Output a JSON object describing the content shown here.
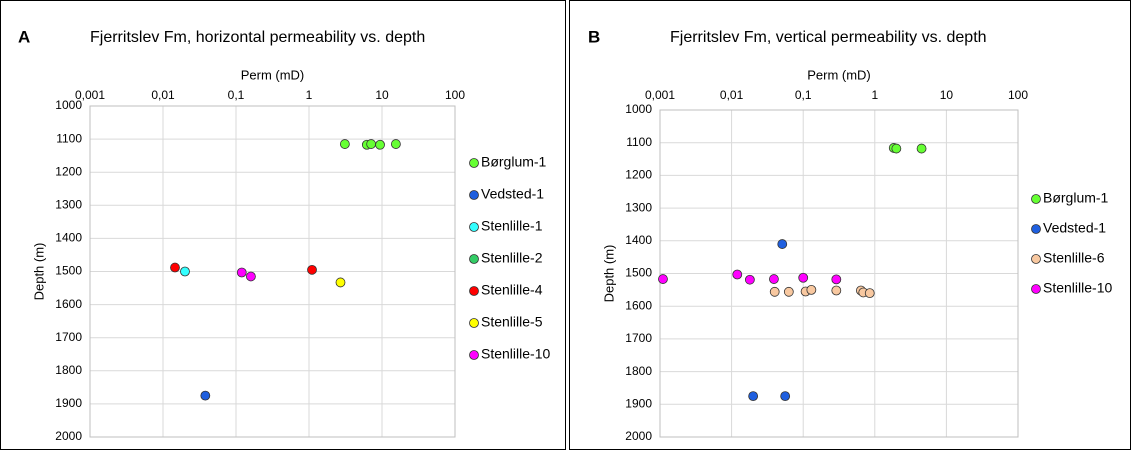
{
  "chart_data": [
    {
      "type": "scatter",
      "panel_label": "A",
      "title": "Fjerritslev Fm,  horizontal permeability vs. depth",
      "x_label": "Perm (mD)",
      "y_label": "Depth (m)",
      "x_log": true,
      "y_inverted": true,
      "grid": true,
      "legend": "right",
      "xlim": [
        0.001,
        100
      ],
      "xticks": [
        {
          "value": 0.001,
          "label": "0,001"
        },
        {
          "value": 0.01,
          "label": "0,01"
        },
        {
          "value": 0.1,
          "label": "0,1"
        },
        1,
        10,
        100
      ],
      "ylim": [
        1000,
        2000
      ],
      "yticks": [
        1000,
        1100,
        1200,
        1300,
        1400,
        1500,
        1600,
        1700,
        1800,
        1900,
        2000
      ],
      "series": [
        {
          "name": "Børglum-1",
          "color": "#66ff33",
          "x": [
            3.1,
            6.2,
            7.1,
            9.4,
            15.5
          ],
          "y": [
            1115,
            1117,
            1115,
            1117,
            1115
          ]
        },
        {
          "name": "Vedsted-1",
          "color": "#1f5fdf",
          "x": [
            0.038
          ],
          "y": [
            1875
          ]
        },
        {
          "name": "Stenlille-1",
          "color": "#33ffff",
          "x": [
            0.02
          ],
          "y": [
            1500
          ]
        },
        {
          "name": "Stenlille-2",
          "color": "#33cc66",
          "x": [],
          "y": []
        },
        {
          "name": "Stenlille-4",
          "color": "#ff0000",
          "x": [
            0.0146,
            1.1
          ],
          "y": [
            1488,
            1495
          ]
        },
        {
          "name": "Stenlille-5",
          "color": "#ffff00",
          "x": [
            2.7
          ],
          "y": [
            1533
          ]
        },
        {
          "name": "Stenlille-10",
          "color": "#ff00ff",
          "x": [
            0.12,
            0.16
          ],
          "y": [
            1503,
            1515
          ]
        }
      ]
    },
    {
      "type": "scatter",
      "panel_label": "B",
      "title": "Fjerritslev Fm, vertical permeability vs. depth",
      "x_label": "Perm (mD)",
      "y_label": "Depth (m)",
      "x_log": true,
      "y_inverted": true,
      "grid": true,
      "legend": "right",
      "xlim": [
        0.001,
        100
      ],
      "xticks": [
        {
          "value": 0.001,
          "label": "0,001"
        },
        {
          "value": 0.01,
          "label": "0,01"
        },
        {
          "value": 0.1,
          "label": "0,1"
        },
        1,
        10,
        100
      ],
      "ylim": [
        1000,
        2000
      ],
      "yticks": [
        1000,
        1100,
        1200,
        1300,
        1400,
        1500,
        1600,
        1700,
        1800,
        1900,
        2000
      ],
      "series": [
        {
          "name": "Børglum-1",
          "color": "#66ff33",
          "x": [
            1.84,
            2.0,
            4.5
          ],
          "y": [
            1116,
            1118,
            1118
          ]
        },
        {
          "name": "Vedsted-1",
          "color": "#1f5fdf",
          "x": [
            0.051,
            0.02,
            0.056
          ],
          "y": [
            1410,
            1875,
            1875
          ]
        },
        {
          "name": "Stenlille-6",
          "color": "#f8c8a0",
          "x": [
            0.04,
            0.063,
            0.108,
            0.13,
            0.29,
            0.64,
            0.69,
            0.85
          ],
          "y": [
            1556,
            1556,
            1555,
            1550,
            1552,
            1552,
            1558,
            1560
          ]
        },
        {
          "name": "Stenlille-10",
          "color": "#ff00ff",
          "x": [
            0.0011,
            0.012,
            0.018,
            0.039,
            0.1,
            0.29
          ],
          "y": [
            1517,
            1503,
            1519,
            1517,
            1513,
            1518
          ]
        }
      ]
    }
  ]
}
